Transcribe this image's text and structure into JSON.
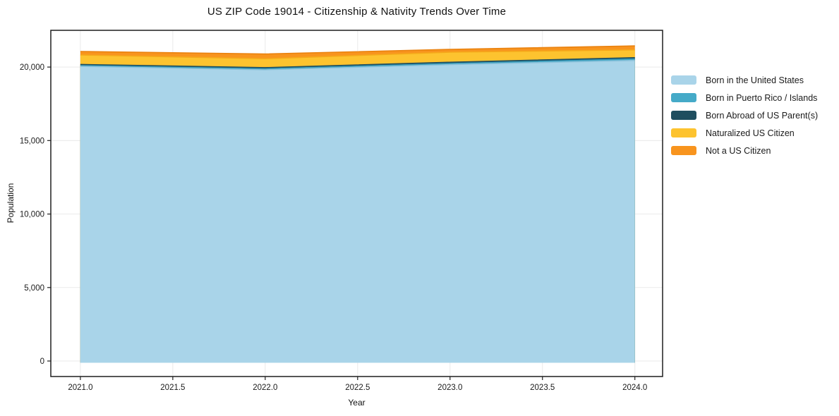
{
  "chart_data": {
    "type": "area",
    "stacked": true,
    "title": "US ZIP Code 19014 - Citizenship & Nativity Trends Over Time",
    "xlabel": "Year",
    "ylabel": "Population",
    "x": [
      2021,
      2022,
      2023,
      2024
    ],
    "series": [
      {
        "name": "Born in the United States",
        "color": "#a9d4e9",
        "edge": "#8cc2db",
        "values": [
          20050,
          19820,
          20170,
          20450
        ]
      },
      {
        "name": "Born in Puerto Rico / Islands",
        "color": "#45aac8",
        "edge": "#3a9cba",
        "values": [
          70,
          70,
          75,
          105
        ]
      },
      {
        "name": "Born Abroad of US Parent(s)",
        "color": "#1f4e5f",
        "edge": "#1f4e5f",
        "values": [
          60,
          70,
          80,
          85
        ]
      },
      {
        "name": "Naturalized US Citizen",
        "color": "#fdc32f",
        "edge": "#f5a81a",
        "values": [
          640,
          610,
          690,
          530
        ]
      },
      {
        "name": "Not a US Citizen",
        "color": "#f8941e",
        "edge": "#ea820f",
        "values": [
          240,
          320,
          190,
          270
        ]
      }
    ],
    "xticks": [
      2021.0,
      2021.5,
      2022.0,
      2022.5,
      2023.0,
      2023.5,
      2024.0
    ],
    "yticks": [
      0,
      5000,
      10000,
      15000,
      20000
    ],
    "xlim": [
      2020.84,
      2024.15
    ],
    "ylim": [
      -1055,
      22500
    ],
    "grid": true,
    "gridline_color": "#eaeaea",
    "spine_color": "#1f1f1f",
    "background": "#ffffff",
    "legend_position": "right-outside"
  }
}
